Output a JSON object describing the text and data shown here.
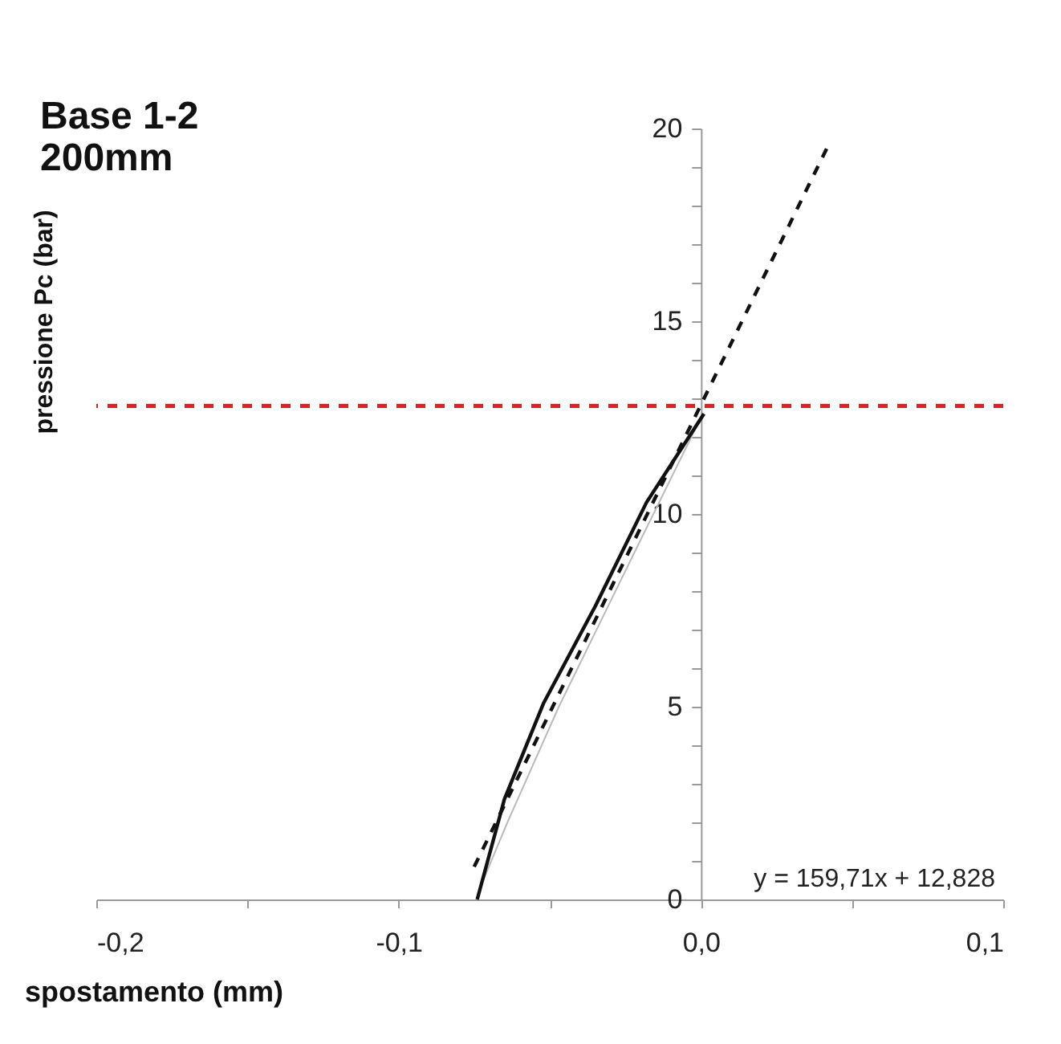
{
  "chart_data": {
    "type": "line",
    "title": "Base 1-2\n200mm",
    "xlabel": "spostamento (mm)",
    "ylabel": "pressione Pc (bar)",
    "annotations": [
      "y = 159,71x + 12,828"
    ],
    "xlim": [
      -0.2,
      0.1
    ],
    "xticks": [
      {
        "value": -0.2,
        "label": "-0,2"
      },
      {
        "value": -0.15,
        "label": null
      },
      {
        "value": -0.1,
        "label": "-0,1"
      },
      {
        "value": -0.05,
        "label": null
      },
      {
        "value": 0,
        "label": "0,0"
      },
      {
        "value": 0.05,
        "label": null
      },
      {
        "value": 0.1,
        "label": "0,1"
      }
    ],
    "ylim": [
      0,
      20
    ],
    "yticks": [
      0,
      {
        "value": 1,
        "label": null
      },
      {
        "value": 2,
        "label": null
      },
      {
        "value": 3,
        "label": null
      },
      {
        "value": 4,
        "label": null
      },
      5,
      {
        "value": 6,
        "label": null
      },
      {
        "value": 7,
        "label": null
      },
      {
        "value": 8,
        "label": null
      },
      {
        "value": 9,
        "label": null
      },
      10,
      {
        "value": 11,
        "label": null
      },
      {
        "value": 12,
        "label": null
      },
      {
        "value": 13,
        "label": null
      },
      {
        "value": 14,
        "label": null
      },
      15,
      {
        "value": 16,
        "label": null
      },
      {
        "value": 17,
        "label": null
      },
      {
        "value": 18,
        "label": null
      },
      {
        "value": 19,
        "label": null
      },
      20
    ],
    "grid": false,
    "marker": "none",
    "series": [
      {
        "color": "#bbbbbb",
        "x": [
          0,
          -0.022,
          -0.047,
          -0.064,
          -0.072
        ],
        "values": [
          12.5,
          9,
          5,
          2,
          0.5
        ]
      },
      {
        "color": "#111111",
        "line_style": "solid",
        "x": [
          0.001,
          -0.018,
          -0.035,
          -0.052,
          -0.065,
          -0.074
        ],
        "values": [
          12.6,
          10.3,
          7.6,
          5.1,
          2.6,
          0
        ]
      },
      {
        "color": "#111111",
        "line_style": "dashed",
        "x": [
          -0.075,
          0.0425
        ],
        "values": [
          0.85,
          19.62
        ]
      }
    ],
    "ref_lines": [
      {
        "axis": "y",
        "value": 12.8,
        "color": "#dd2222",
        "line_style": "dashed"
      }
    ]
  }
}
